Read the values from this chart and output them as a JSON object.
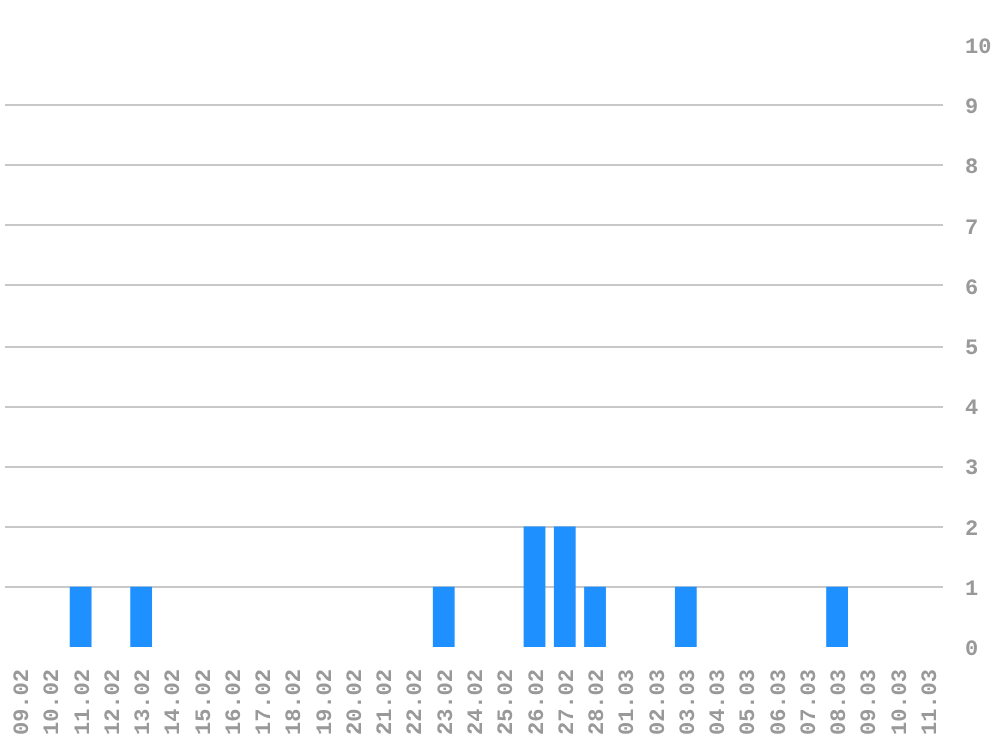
{
  "chart_data": {
    "type": "bar",
    "categories": [
      "09.02",
      "10.02",
      "11.02",
      "12.02",
      "13.02",
      "14.02",
      "15.02",
      "16.02",
      "17.02",
      "18.02",
      "19.02",
      "20.02",
      "21.02",
      "22.02",
      "23.02",
      "24.02",
      "25.02",
      "26.02",
      "27.02",
      "28.02",
      "01.03",
      "02.03",
      "03.03",
      "04.03",
      "05.03",
      "06.03",
      "07.03",
      "08.03",
      "09.03",
      "10.03",
      "11.03"
    ],
    "values": [
      0,
      0,
      1,
      0,
      1,
      0,
      0,
      0,
      0,
      0,
      0,
      0,
      0,
      0,
      1,
      0,
      0,
      2,
      2,
      1,
      0,
      0,
      1,
      0,
      0,
      0,
      0,
      1,
      0,
      0,
      0
    ],
    "color": "#1e90ff",
    "ylim": [
      0,
      10
    ],
    "yticks": [
      0,
      1,
      2,
      3,
      4,
      5,
      6,
      7,
      8,
      9,
      10
    ],
    "grid": "y"
  }
}
